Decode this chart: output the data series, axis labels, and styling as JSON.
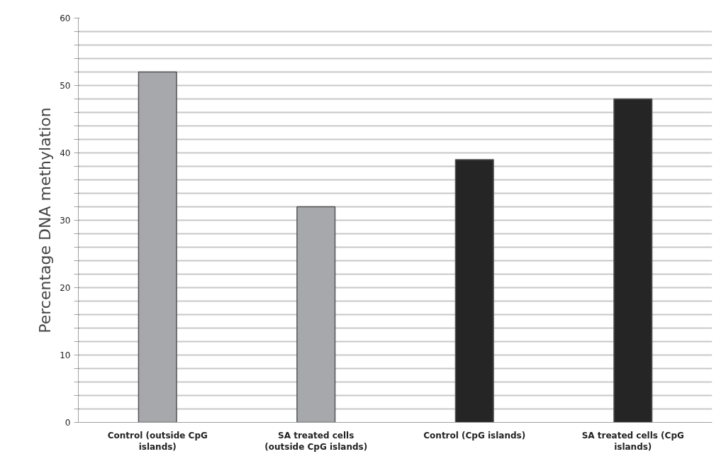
{
  "chart_data": {
    "type": "bar",
    "ylabel": "Percentage DNA methylation",
    "categories": [
      "Control (outside CpG islands)",
      "SA treated cells (outside CpG islands)",
      "Control (CpG islands)",
      "SA treated cells (CpG islands)"
    ],
    "values": [
      52,
      32,
      39,
      48
    ],
    "colors": [
      "#a7a8ab",
      "#a7a8ab",
      "#252525",
      "#252525"
    ],
    "ylim": [
      0,
      60
    ],
    "yticks": [
      0,
      {
        "value": 2,
        "label": null
      },
      {
        "value": 4,
        "label": null
      },
      {
        "value": 6,
        "label": null
      },
      {
        "value": 8,
        "label": null
      },
      10,
      {
        "value": 12,
        "label": null
      },
      {
        "value": 14,
        "label": null
      },
      {
        "value": 16,
        "label": null
      },
      {
        "value": 18,
        "label": null
      },
      20,
      {
        "value": 22,
        "label": null
      },
      {
        "value": 24,
        "label": null
      },
      {
        "value": 26,
        "label": null
      },
      {
        "value": 28,
        "label": null
      },
      30,
      {
        "value": 32,
        "label": null
      },
      {
        "value": 34,
        "label": null
      },
      {
        "value": 36,
        "label": null
      },
      {
        "value": 38,
        "label": null
      },
      40,
      {
        "value": 42,
        "label": null
      },
      {
        "value": 44,
        "label": null
      },
      {
        "value": 46,
        "label": null
      },
      {
        "value": 48,
        "label": null
      },
      50,
      {
        "value": 52,
        "label": null
      },
      {
        "value": 54,
        "label": null
      },
      {
        "value": 56,
        "label": null
      },
      {
        "value": 58,
        "label": null
      },
      60
    ],
    "grid": "y"
  }
}
